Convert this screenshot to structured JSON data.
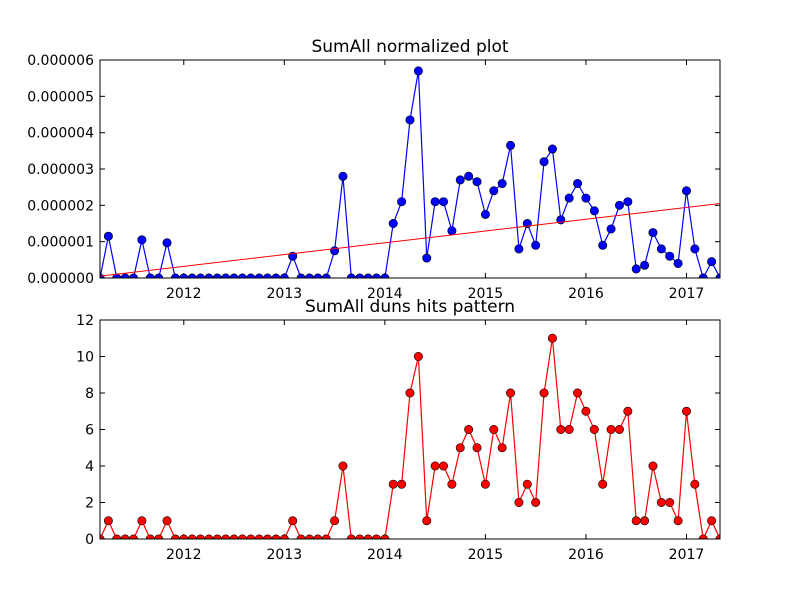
{
  "chart_data": [
    {
      "type": "line",
      "title": "SumAll normalized plot",
      "xlabel": "",
      "ylabel": "",
      "xlim": [
        "2011-03",
        "2017-05"
      ],
      "ylim": [
        0,
        6e-06
      ],
      "x_ticks": [
        "2012",
        "2013",
        "2014",
        "2015",
        "2016",
        "2017"
      ],
      "y_ticks": [
        "0.000000",
        "0.000001",
        "0.000002",
        "0.000003",
        "0.000004",
        "0.000005",
        "0.000006"
      ],
      "grid": false,
      "legend": "none",
      "x": [
        "2011-03",
        "2011-04",
        "2011-05",
        "2011-06",
        "2011-07",
        "2011-08",
        "2011-09",
        "2011-10",
        "2011-11",
        "2011-12",
        "2012-01",
        "2012-02",
        "2012-03",
        "2012-04",
        "2012-05",
        "2012-06",
        "2012-07",
        "2012-08",
        "2012-09",
        "2012-10",
        "2012-11",
        "2012-12",
        "2013-01",
        "2013-02",
        "2013-03",
        "2013-04",
        "2013-05",
        "2013-06",
        "2013-07",
        "2013-08",
        "2013-09",
        "2013-10",
        "2013-11",
        "2013-12",
        "2014-01",
        "2014-02",
        "2014-03",
        "2014-04",
        "2014-05",
        "2014-06",
        "2014-07",
        "2014-08",
        "2014-09",
        "2014-10",
        "2014-11",
        "2014-12",
        "2015-01",
        "2015-02",
        "2015-03",
        "2015-04",
        "2015-05",
        "2015-06",
        "2015-07",
        "2015-08",
        "2015-09",
        "2015-10",
        "2015-11",
        "2015-12",
        "2016-01",
        "2016-02",
        "2016-03",
        "2016-04",
        "2016-05",
        "2016-06",
        "2016-07",
        "2016-08",
        "2016-09",
        "2016-10",
        "2016-11",
        "2016-12",
        "2017-01",
        "2017-02",
        "2017-03",
        "2017-04",
        "2017-05"
      ],
      "series": [
        {
          "style": "marker-line",
          "color": "#0000ff",
          "values": [
            0,
            1.15e-06,
            0,
            0,
            0,
            1.05e-06,
            0,
            0,
            9.7e-07,
            0,
            0,
            0,
            0,
            0,
            0,
            0,
            0,
            0,
            0,
            0,
            0,
            0,
            0,
            6e-07,
            0,
            0,
            0,
            0,
            7.5e-07,
            2.8e-06,
            0,
            0,
            0,
            0,
            0,
            1.5e-06,
            2.1e-06,
            4.35e-06,
            5.7e-06,
            5.5e-07,
            2.1e-06,
            2.1e-06,
            1.3e-06,
            2.7e-06,
            2.8e-06,
            2.65e-06,
            1.75e-06,
            2.4e-06,
            2.6e-06,
            3.65e-06,
            8e-07,
            1.5e-06,
            9e-07,
            3.2e-06,
            3.55e-06,
            1.6e-06,
            2.2e-06,
            2.6e-06,
            2.2e-06,
            1.85e-06,
            9e-07,
            1.35e-06,
            2e-06,
            2.1e-06,
            2.5e-07,
            3.5e-07,
            1.25e-06,
            8e-07,
            6e-07,
            4e-07,
            2.4e-06,
            8e-07,
            0,
            4.5e-07,
            0
          ]
        },
        {
          "style": "trend-line",
          "color": "#ff0000",
          "values_at_limits": [
            5e-08,
            2.05e-06
          ]
        }
      ]
    },
    {
      "type": "line",
      "title": "SumAll duns hits pattern",
      "xlabel": "",
      "ylabel": "",
      "xlim": [
        "2011-03",
        "2017-05"
      ],
      "ylim": [
        0,
        12
      ],
      "x_ticks": [
        "2012",
        "2013",
        "2014",
        "2015",
        "2016",
        "2017"
      ],
      "y_ticks": [
        "0",
        "2",
        "4",
        "6",
        "8",
        "10",
        "12"
      ],
      "grid": false,
      "legend": "none",
      "x": [
        "2011-03",
        "2011-04",
        "2011-05",
        "2011-06",
        "2011-07",
        "2011-08",
        "2011-09",
        "2011-10",
        "2011-11",
        "2011-12",
        "2012-01",
        "2012-02",
        "2012-03",
        "2012-04",
        "2012-05",
        "2012-06",
        "2012-07",
        "2012-08",
        "2012-09",
        "2012-10",
        "2012-11",
        "2012-12",
        "2013-01",
        "2013-02",
        "2013-03",
        "2013-04",
        "2013-05",
        "2013-06",
        "2013-07",
        "2013-08",
        "2013-09",
        "2013-10",
        "2013-11",
        "2013-12",
        "2014-01",
        "2014-02",
        "2014-03",
        "2014-04",
        "2014-05",
        "2014-06",
        "2014-07",
        "2014-08",
        "2014-09",
        "2014-10",
        "2014-11",
        "2014-12",
        "2015-01",
        "2015-02",
        "2015-03",
        "2015-04",
        "2015-05",
        "2015-06",
        "2015-07",
        "2015-08",
        "2015-09",
        "2015-10",
        "2015-11",
        "2015-12",
        "2016-01",
        "2016-02",
        "2016-03",
        "2016-04",
        "2016-05",
        "2016-06",
        "2016-07",
        "2016-08",
        "2016-09",
        "2016-10",
        "2016-11",
        "2016-12",
        "2017-01",
        "2017-02",
        "2017-03",
        "2017-04",
        "2017-05"
      ],
      "series": [
        {
          "style": "marker-line",
          "color": "#ff0000",
          "values": [
            0,
            1,
            0,
            0,
            0,
            1,
            0,
            0,
            1,
            0,
            0,
            0,
            0,
            0,
            0,
            0,
            0,
            0,
            0,
            0,
            0,
            0,
            0,
            1,
            0,
            0,
            0,
            0,
            1,
            4,
            0,
            0,
            0,
            0,
            0,
            3,
            3,
            8,
            10,
            1,
            4,
            4,
            3,
            5,
            6,
            5,
            3,
            6,
            5,
            8,
            2,
            3,
            2,
            8,
            11,
            6,
            6,
            8,
            7,
            6,
            3,
            6,
            6,
            7,
            1,
            1,
            4,
            2,
            2,
            1,
            7,
            3,
            0,
            1,
            0
          ]
        }
      ]
    }
  ]
}
